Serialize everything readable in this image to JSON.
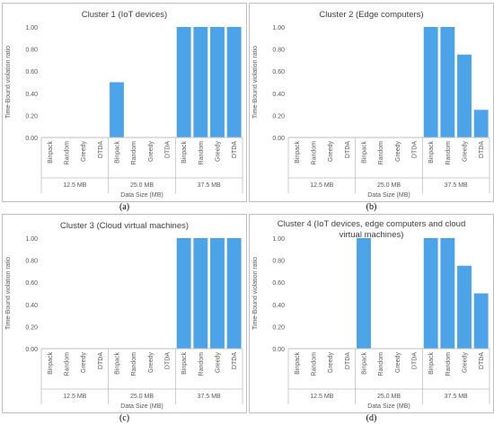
{
  "chart_data": [
    {
      "type": "bar",
      "title": "Cluster 1 (IoT devices)",
      "ylabel": "Time-Bound violation ratio",
      "xlabel": "Data Size (MB)",
      "ylim": [
        0,
        1
      ],
      "yticks": [
        "0.00",
        "0.20",
        "0.40",
        "0.60",
        "0.80",
        "1.00"
      ],
      "groups": [
        "12.5 MB",
        "25.0 MB",
        "37.5 MB"
      ],
      "categories": [
        "Binpack",
        "Random",
        "Greedy",
        "DTDA"
      ],
      "values": [
        [
          0,
          0,
          0,
          0
        ],
        [
          0.5,
          0,
          0,
          0
        ],
        [
          1,
          1,
          1,
          1
        ]
      ],
      "grid": false,
      "color": "#4da3e8",
      "caption": "(a)"
    },
    {
      "type": "bar",
      "title": "Cluster 2 (Edge computers)",
      "ylabel": "Time-Bound violation ratio",
      "xlabel": "Data Size (MB)",
      "ylim": [
        0,
        1
      ],
      "yticks": [
        "0.00",
        "0.20",
        "0.40",
        "0.60",
        "0.80",
        "1.00"
      ],
      "groups": [
        "12.5 MB",
        "25.0 MB",
        "37.5 MB"
      ],
      "categories": [
        "Binpack",
        "Random",
        "Greedy",
        "DTDA"
      ],
      "values": [
        [
          0,
          0,
          0,
          0
        ],
        [
          0,
          0,
          0,
          0
        ],
        [
          1,
          1,
          0.75,
          0.25
        ]
      ],
      "grid": false,
      "color": "#4da3e8",
      "caption": "(b)"
    },
    {
      "type": "bar",
      "title": "Cluster 3 (Cloud virtual machines)",
      "ylabel": "Time-Bound violation ratio",
      "xlabel": "Data Size (MB)",
      "ylim": [
        0,
        1
      ],
      "yticks": [
        "0.00",
        "0.20",
        "0.40",
        "0.60",
        "0.80",
        "1.00"
      ],
      "groups": [
        "12.5 MB",
        "25.0 MB",
        "37.5 MB"
      ],
      "categories": [
        "Binpack",
        "Random",
        "Greedy",
        "DTDA"
      ],
      "values": [
        [
          0,
          0,
          0,
          0
        ],
        [
          0,
          0,
          0,
          0
        ],
        [
          1,
          1,
          1,
          1
        ]
      ],
      "grid": false,
      "color": "#4da3e8",
      "caption": "(c)"
    },
    {
      "type": "bar",
      "title": "Cluster 4 (IoT devices, edge computers and cloud virtual machines)",
      "title_lines": [
        "Cluster 4 (IoT devices, edge computers and cloud",
        "virtual machines)"
      ],
      "ylabel": "Time-Bound violation ratio",
      "xlabel": "Data Size (MB)",
      "ylim": [
        0,
        1
      ],
      "yticks": [
        "0.00",
        "0.20",
        "0.40",
        "0.60",
        "0.80",
        "1.00"
      ],
      "groups": [
        "12.5 MB",
        "25.0 MB",
        "37.5 MB"
      ],
      "categories": [
        "Binpack",
        "Random",
        "Greedy",
        "DTDA"
      ],
      "values": [
        [
          0,
          0,
          0,
          0
        ],
        [
          1,
          0,
          0,
          0
        ],
        [
          1,
          1,
          0.75,
          0.5
        ]
      ],
      "grid": false,
      "color": "#4da3e8",
      "caption": "(d)"
    }
  ]
}
